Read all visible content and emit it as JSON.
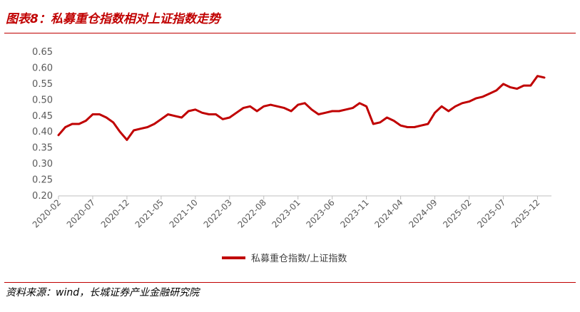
{
  "title": "图表8：私募重仓指数相对上证指数走势",
  "source": "资料来源：wind，长城证券产业金融研究院",
  "chart_data": {
    "type": "line",
    "title": "图表8：私募重仓指数相对上证指数走势",
    "xlabel": "",
    "ylabel": "",
    "ylim": [
      0.2,
      0.65
    ],
    "yticks": [
      "0.20",
      "0.25",
      "0.30",
      "0.35",
      "0.40",
      "0.45",
      "0.50",
      "0.55",
      "0.60",
      "0.65"
    ],
    "xticks": [
      "2020-02",
      "2020-07",
      "2020-12",
      "2021-05",
      "2021-10",
      "2022-03",
      "2022-08",
      "2023-01",
      "2023-06",
      "2023-11",
      "2024-04",
      "2024-09",
      "2025-02",
      "2025-07",
      "2025-12"
    ],
    "xrange": [
      "2020-02",
      "2026-01"
    ],
    "grid": false,
    "legend": "bottom-center",
    "series": [
      {
        "name": "私募重仓指数/上证指数",
        "color": "#c00000",
        "x": [
          "2020-02",
          "2020-03",
          "2020-04",
          "2020-05",
          "2020-06",
          "2020-07",
          "2020-08",
          "2020-09",
          "2020-10",
          "2020-11",
          "2020-12",
          "2021-01",
          "2021-02",
          "2021-03",
          "2021-04",
          "2021-05",
          "2021-06",
          "2021-07",
          "2021-08",
          "2021-09",
          "2021-10",
          "2021-11",
          "2021-12",
          "2022-01",
          "2022-02",
          "2022-03",
          "2022-04",
          "2022-05",
          "2022-06",
          "2022-07",
          "2022-08",
          "2022-09",
          "2022-10",
          "2022-11",
          "2022-12",
          "2023-01",
          "2023-02",
          "2023-03",
          "2023-04",
          "2023-05",
          "2023-06",
          "2023-07",
          "2023-08",
          "2023-09",
          "2023-10",
          "2023-11",
          "2023-12",
          "2024-01",
          "2024-02",
          "2024-03",
          "2024-04",
          "2024-05",
          "2024-06",
          "2024-07",
          "2024-08",
          "2024-09",
          "2024-10",
          "2024-11",
          "2024-12",
          "2025-01",
          "2025-02",
          "2025-03",
          "2025-04",
          "2025-05",
          "2025-06",
          "2025-07",
          "2025-08",
          "2025-09",
          "2025-10",
          "2025-11",
          "2025-12",
          "2026-01"
        ],
        "values": [
          0.39,
          0.415,
          0.425,
          0.425,
          0.435,
          0.455,
          0.455,
          0.445,
          0.43,
          0.4,
          0.375,
          0.405,
          0.41,
          0.415,
          0.425,
          0.44,
          0.455,
          0.45,
          0.445,
          0.465,
          0.47,
          0.46,
          0.455,
          0.455,
          0.44,
          0.445,
          0.46,
          0.475,
          0.48,
          0.465,
          0.48,
          0.485,
          0.48,
          0.475,
          0.465,
          0.485,
          0.49,
          0.47,
          0.455,
          0.46,
          0.465,
          0.465,
          0.47,
          0.475,
          0.49,
          0.48,
          0.425,
          0.43,
          0.445,
          0.435,
          0.42,
          0.415,
          0.415,
          0.42,
          0.425,
          0.46,
          0.48,
          0.465,
          0.48,
          0.49,
          0.495,
          0.505,
          0.51,
          0.52,
          0.53,
          0.55,
          0.54,
          0.535,
          0.545,
          0.545,
          0.575,
          0.57
        ]
      }
    ]
  }
}
